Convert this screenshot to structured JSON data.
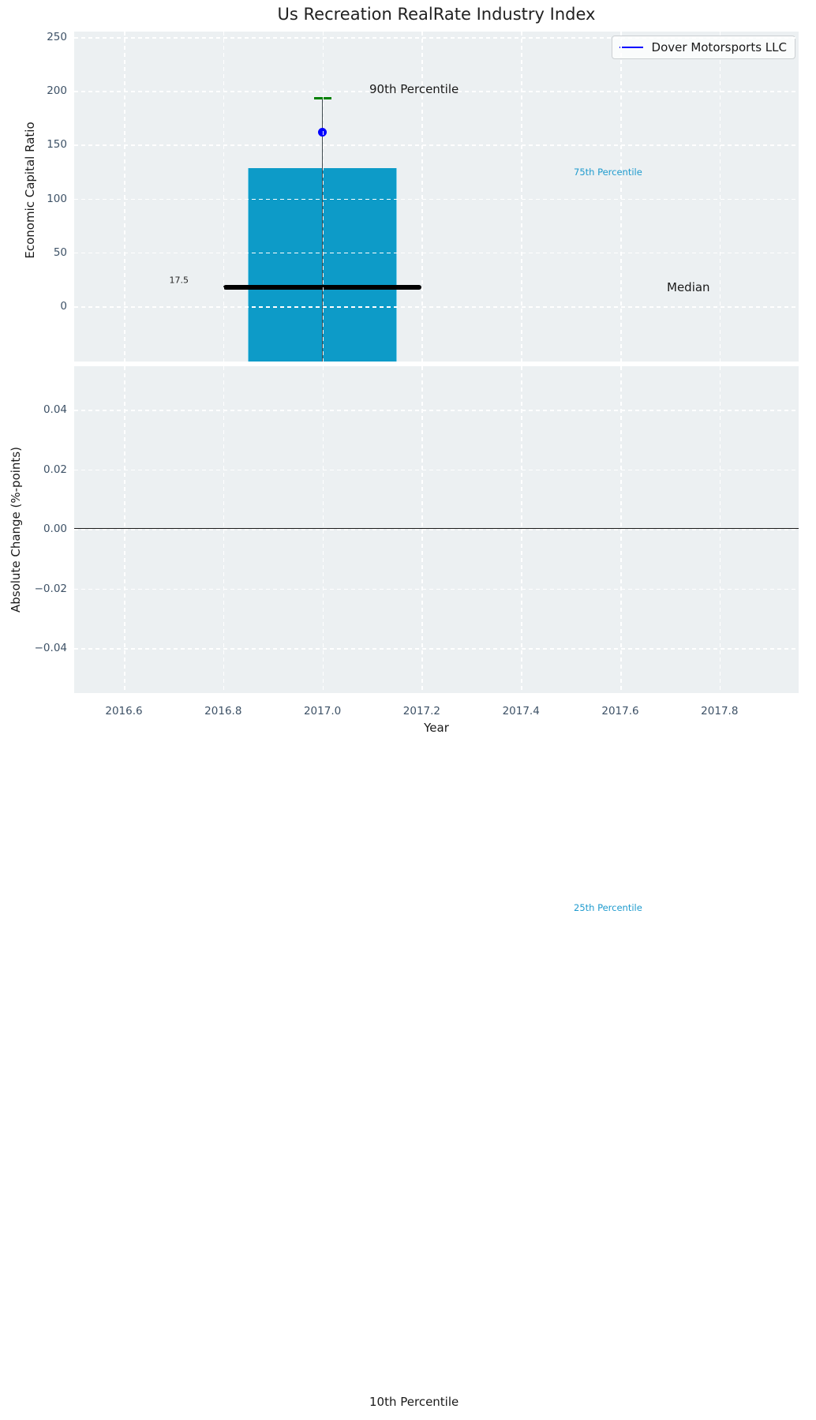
{
  "title": "Us Recreation RealRate Industry Index",
  "legend": {
    "label": "Dover Motorsports LLC",
    "line_color": "#0000ff"
  },
  "colors": {
    "plot_bg": "#ecf0f2",
    "grid": "#ffffff",
    "box_fill": "#0d9bc8",
    "green_cap": "#008000",
    "company_dot": "#0000ff",
    "median_line": "#000000",
    "cyan_text": "#1f9bce",
    "dark_text": "#1a1a1a",
    "tick_text": "#3d5166"
  },
  "top_axis": {
    "ylabel": "Economic Capital Ratio",
    "ticks": [
      {
        "label": "250",
        "value": 250
      },
      {
        "label": "200",
        "value": 200
      },
      {
        "label": "150",
        "value": 150
      },
      {
        "label": "100",
        "value": 100
      },
      {
        "label": "50",
        "value": 50
      },
      {
        "label": "0",
        "value": 0
      }
    ]
  },
  "bottom_axis": {
    "ylabel": "Absolute Change (%-points)",
    "ticks": [
      {
        "label": "0.04",
        "value": 0.04
      },
      {
        "label": "0.02",
        "value": 0.02
      },
      {
        "label": "0.00",
        "value": 0.0
      },
      {
        "label": "−0.02",
        "value": -0.02
      },
      {
        "label": "−0.04",
        "value": -0.04
      }
    ]
  },
  "x_axis": {
    "label": "Year",
    "ticks": [
      {
        "label": "2016.6",
        "value": 2016.6
      },
      {
        "label": "2016.8",
        "value": 2016.8
      },
      {
        "label": "2017.0",
        "value": 2017.0
      },
      {
        "label": "2017.2",
        "value": 2017.2
      },
      {
        "label": "2017.4",
        "value": 2017.4
      },
      {
        "label": "2017.6",
        "value": 2017.6
      },
      {
        "label": "2017.8",
        "value": 2017.8
      }
    ]
  },
  "annotations": {
    "p90": "90th Percentile",
    "p75": "75th Percentile",
    "median": "Median",
    "median_value": "17.5",
    "p25": "25th Percentile",
    "p10": "10th Percentile"
  },
  "chart_data": {
    "type": "box",
    "title": "Us Recreation RealRate Industry Index",
    "xlabel": "Year",
    "ylabel": "Economic Capital Ratio",
    "ylabel_secondary": "Absolute Change (%-points)",
    "grid": true,
    "xlim": [
      2016.5,
      2017.96
    ],
    "ylim_top": [
      -51,
      255
    ],
    "ylim_bottom": [
      -0.055,
      0.055
    ],
    "box": {
      "x": 2017.0,
      "width": 0.3,
      "p90": 193,
      "p75": 128,
      "median": 17.5,
      "p25": null,
      "p10": null,
      "median_line_x_span": [
        2016.8,
        2017.2
      ],
      "note_p25_p10": "25th and 10th percentile values lie below the visible axis range; only their labels are shown"
    },
    "series": [
      {
        "name": "Dover Motorsports LLC",
        "x": 2017.0,
        "value": 162,
        "marker": "circle"
      }
    ],
    "secondary_axis_data": "no change series plotted; horizontal reference line at 0.00"
  }
}
